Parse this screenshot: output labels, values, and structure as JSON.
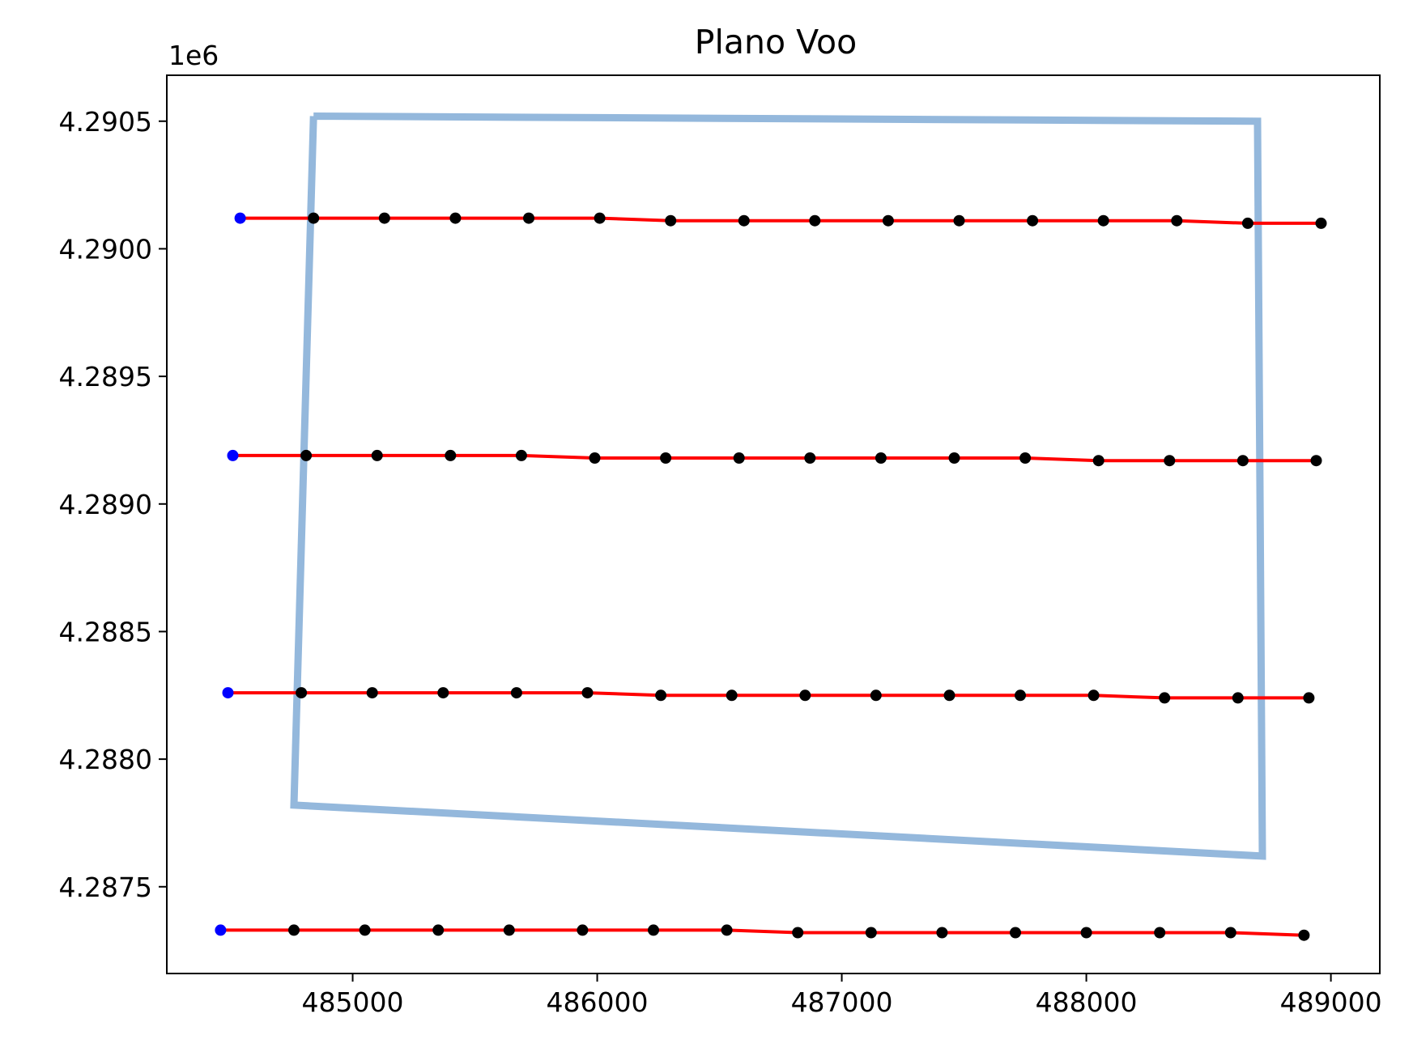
{
  "chart_data": {
    "type": "scatter",
    "title": "Plano Voo",
    "xlabel": "",
    "ylabel": "",
    "y_offset_label": "1e6",
    "xlim": [
      484240,
      489200
    ],
    "ylim": [
      4.28716,
      4.29068
    ],
    "x_ticks": [
      485000,
      486000,
      487000,
      488000,
      489000
    ],
    "x_tick_labels": [
      "485000",
      "486000",
      "487000",
      "488000",
      "489000"
    ],
    "y_ticks": [
      4.2875,
      4.288,
      4.2885,
      4.289,
      4.2895,
      4.29,
      4.2905
    ],
    "y_tick_labels": [
      "4.2875",
      "4.2880",
      "4.2885",
      "4.2890",
      "4.2895",
      "4.2900",
      "4.2905"
    ],
    "colors": {
      "boundary": "#94b8dc",
      "flight_line": "#ff0000",
      "waypoint": "#000000",
      "start_point": "#0000ff"
    },
    "boundary_polygon": [
      [
        484840,
        4.29052
      ],
      [
        488700,
        4.2905
      ],
      [
        488720,
        4.28762
      ],
      [
        484760,
        4.28782
      ],
      [
        484840,
        4.29052
      ]
    ],
    "strips": [
      {
        "start": [
          484540,
          4.29012
        ],
        "waypoints": [
          [
            484840,
            4.29012
          ],
          [
            485130,
            4.29012
          ],
          [
            485420,
            4.29012
          ],
          [
            485720,
            4.29012
          ],
          [
            486010,
            4.29012
          ],
          [
            486300,
            4.29011
          ],
          [
            486600,
            4.29011
          ],
          [
            486890,
            4.29011
          ],
          [
            487190,
            4.29011
          ],
          [
            487480,
            4.29011
          ],
          [
            487780,
            4.29011
          ],
          [
            488070,
            4.29011
          ],
          [
            488370,
            4.29011
          ],
          [
            488660,
            4.2901
          ],
          [
            488960,
            4.2901
          ]
        ]
      },
      {
        "start": [
          484510,
          4.28919
        ],
        "waypoints": [
          [
            484810,
            4.28919
          ],
          [
            485100,
            4.28919
          ],
          [
            485400,
            4.28919
          ],
          [
            485690,
            4.28919
          ],
          [
            485990,
            4.28918
          ],
          [
            486280,
            4.28918
          ],
          [
            486580,
            4.28918
          ],
          [
            486870,
            4.28918
          ],
          [
            487160,
            4.28918
          ],
          [
            487460,
            4.28918
          ],
          [
            487750,
            4.28918
          ],
          [
            488050,
            4.28917
          ],
          [
            488340,
            4.28917
          ],
          [
            488640,
            4.28917
          ],
          [
            488940,
            4.28917
          ]
        ]
      },
      {
        "start": [
          484490,
          4.28826
        ],
        "waypoints": [
          [
            484790,
            4.28826
          ],
          [
            485080,
            4.28826
          ],
          [
            485370,
            4.28826
          ],
          [
            485670,
            4.28826
          ],
          [
            485960,
            4.28826
          ],
          [
            486260,
            4.28825
          ],
          [
            486550,
            4.28825
          ],
          [
            486850,
            4.28825
          ],
          [
            487140,
            4.28825
          ],
          [
            487440,
            4.28825
          ],
          [
            487730,
            4.28825
          ],
          [
            488030,
            4.28825
          ],
          [
            488320,
            4.28824
          ],
          [
            488620,
            4.28824
          ],
          [
            488910,
            4.28824
          ]
        ]
      },
      {
        "start": [
          484460,
          4.28733
        ],
        "waypoints": [
          [
            484760,
            4.28733
          ],
          [
            485050,
            4.28733
          ],
          [
            485350,
            4.28733
          ],
          [
            485640,
            4.28733
          ],
          [
            485940,
            4.28733
          ],
          [
            486230,
            4.28733
          ],
          [
            486530,
            4.28733
          ],
          [
            486820,
            4.28732
          ],
          [
            487120,
            4.28732
          ],
          [
            487410,
            4.28732
          ],
          [
            487710,
            4.28732
          ],
          [
            488000,
            4.28732
          ],
          [
            488300,
            4.28732
          ],
          [
            488590,
            4.28732
          ],
          [
            488890,
            4.28731
          ]
        ]
      }
    ]
  }
}
